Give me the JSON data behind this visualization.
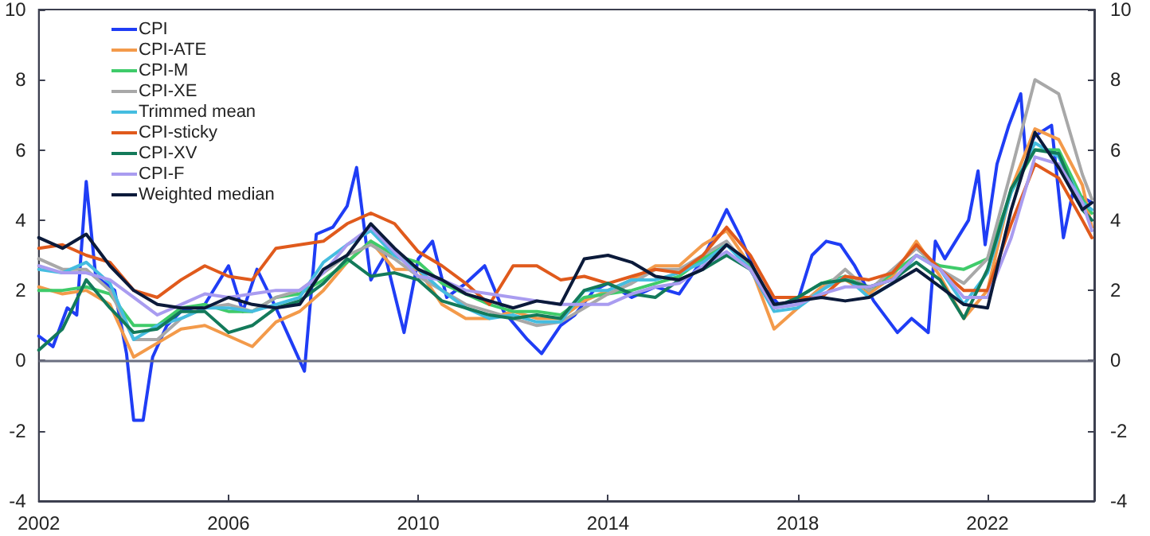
{
  "chart_data": {
    "type": "line",
    "legend": "top left",
    "grid": false,
    "marker": "none",
    "line_style": "solid",
    "xlim": [
      2002,
      2024.25
    ],
    "xticks": [
      2002,
      2006,
      2010,
      2014,
      2018,
      2022
    ],
    "ylim": [
      -4,
      10
    ],
    "yticks": [
      -4,
      -2,
      0,
      2,
      4,
      6,
      8,
      10
    ],
    "y2lim": [
      -4,
      10
    ],
    "y2ticks": [
      -4,
      -2,
      0,
      2,
      4,
      6,
      8,
      10
    ],
    "ref_lines": [
      {
        "axis": "y",
        "value": 0,
        "color": "#6b6f80"
      }
    ],
    "x": [
      2002,
      2002.5,
      2003,
      2003.5,
      2004,
      2004.5,
      2005,
      2005.5,
      2006,
      2006.5,
      2007,
      2007.5,
      2008,
      2008.5,
      2009,
      2009.5,
      2010,
      2010.5,
      2011,
      2011.5,
      2012,
      2012.5,
      2013,
      2013.5,
      2014,
      2014.5,
      2015,
      2015.5,
      2016,
      2016.5,
      2017,
      2017.5,
      2018,
      2018.5,
      2019,
      2019.5,
      2020,
      2020.5,
      2021,
      2021.5,
      2022,
      2022.5,
      2023,
      2023.5,
      2024,
      2024.2
    ],
    "series": [
      {
        "name": "CPI",
        "color": "#1f3df5",
        "x": [
          2002,
          2002.3,
          2002.6,
          2002.8,
          2003,
          2003.2,
          2003.6,
          2003.85,
          2004,
          2004.2,
          2004.4,
          2004.7,
          2005,
          2005.5,
          2006,
          2006.3,
          2006.6,
          2007,
          2007.3,
          2007.6,
          2007.85,
          2008.2,
          2008.5,
          2008.7,
          2009,
          2009.3,
          2009.7,
          2010,
          2010.3,
          2010.6,
          2011,
          2011.4,
          2011.8,
          2012.3,
          2012.6,
          2013,
          2013.3,
          2013.7,
          2014,
          2014.5,
          2015,
          2015.5,
          2016,
          2016.5,
          2016.8,
          2017.2,
          2017.6,
          2018,
          2018.3,
          2018.6,
          2018.9,
          2019.2,
          2019.6,
          2020.1,
          2020.4,
          2020.75,
          2020.9,
          2021.1,
          2021.6,
          2021.8,
          2021.95,
          2022.2,
          2022.45,
          2022.7,
          2022.8,
          2023,
          2023.35,
          2023.6,
          2023.8,
          2024.2
        ],
        "values": [
          0.7,
          0.4,
          1.5,
          1.3,
          5.1,
          2.4,
          2.0,
          0.2,
          -1.7,
          -1.7,
          0.1,
          1.0,
          1.4,
          1.6,
          2.7,
          1.4,
          2.6,
          1.5,
          0.6,
          -0.3,
          3.6,
          3.8,
          4.4,
          5.5,
          2.3,
          3.0,
          0.8,
          2.9,
          3.4,
          1.8,
          2.2,
          2.7,
          1.4,
          0.6,
          0.2,
          1.0,
          1.3,
          2.0,
          2.2,
          1.8,
          2.1,
          1.9,
          2.9,
          4.3,
          3.5,
          2.2,
          1.6,
          1.7,
          3.0,
          3.4,
          3.3,
          2.7,
          1.7,
          0.8,
          1.2,
          0.8,
          3.4,
          2.9,
          4.0,
          5.4,
          3.3,
          5.6,
          6.7,
          7.6,
          5.9,
          6.4,
          6.7,
          3.5,
          4.8,
          4.5
        ]
      },
      {
        "name": "CPI-ATE",
        "color": "#f39a4a",
        "values": [
          2.1,
          1.9,
          2.0,
          1.6,
          0.1,
          0.5,
          0.9,
          1.0,
          0.7,
          0.4,
          1.1,
          1.4,
          2.0,
          2.8,
          3.4,
          2.6,
          2.6,
          1.6,
          1.2,
          1.2,
          1.4,
          1.2,
          1.2,
          1.7,
          2.0,
          2.3,
          2.7,
          2.7,
          3.3,
          3.7,
          2.7,
          0.9,
          1.5,
          2.1,
          2.3,
          1.9,
          2.4,
          3.4,
          2.4,
          1.2,
          2.0,
          4.9,
          6.6,
          6.3,
          5.0,
          3.8
        ]
      },
      {
        "name": "CPI-M",
        "color": "#3fcb6a",
        "values": [
          2.0,
          2.0,
          2.1,
          1.9,
          1.0,
          1.0,
          1.5,
          1.6,
          1.4,
          1.4,
          1.8,
          1.9,
          2.3,
          2.8,
          3.4,
          3.0,
          2.8,
          2.2,
          1.9,
          1.6,
          1.4,
          1.4,
          1.3,
          1.8,
          1.9,
          2.0,
          2.2,
          2.4,
          2.9,
          3.3,
          2.7,
          1.5,
          1.8,
          2.2,
          2.4,
          2.0,
          2.5,
          3.0,
          2.7,
          2.6,
          2.9,
          4.8,
          6.0,
          6.0,
          4.6,
          4.2
        ]
      },
      {
        "name": "CPI-XE",
        "color": "#a8a8a8",
        "values": [
          2.9,
          2.6,
          2.6,
          2.0,
          0.6,
          0.6,
          1.2,
          1.5,
          1.6,
          1.4,
          1.8,
          2.0,
          2.5,
          3.0,
          3.3,
          2.9,
          2.4,
          2.0,
          1.6,
          1.4,
          1.2,
          1.0,
          1.1,
          1.5,
          1.9,
          2.2,
          2.6,
          2.6,
          3.0,
          3.4,
          2.6,
          1.5,
          1.6,
          2.0,
          2.6,
          2.0,
          2.6,
          3.2,
          2.6,
          2.2,
          2.9,
          5.4,
          8.0,
          7.6,
          5.3,
          4.6
        ]
      },
      {
        "name": "Trimmed mean",
        "color": "#45bde0",
        "values": [
          2.6,
          2.5,
          2.8,
          2.2,
          0.6,
          1.0,
          1.2,
          1.5,
          1.5,
          1.4,
          1.6,
          1.8,
          2.8,
          3.3,
          3.7,
          3.0,
          2.6,
          2.0,
          1.5,
          1.2,
          1.3,
          1.1,
          1.1,
          2.0,
          2.0,
          2.3,
          2.3,
          2.5,
          2.8,
          3.3,
          2.6,
          1.4,
          1.5,
          2.0,
          2.4,
          1.8,
          2.2,
          3.0,
          2.6,
          1.6,
          2.5,
          4.8,
          6.2,
          5.8,
          4.5,
          4.3
        ]
      },
      {
        "name": "CPI-sticky",
        "color": "#e05a1c",
        "values": [
          3.2,
          3.3,
          3.0,
          2.8,
          2.0,
          1.8,
          2.3,
          2.7,
          2.4,
          2.3,
          3.2,
          3.3,
          3.4,
          3.9,
          4.2,
          3.9,
          3.1,
          2.7,
          2.2,
          1.6,
          2.7,
          2.7,
          2.3,
          2.4,
          2.2,
          2.4,
          2.6,
          2.5,
          3.0,
          3.8,
          3.0,
          1.8,
          1.8,
          1.8,
          2.4,
          2.3,
          2.5,
          3.3,
          2.6,
          2.0,
          2.0,
          3.9,
          5.6,
          5.2,
          4.0,
          3.5
        ]
      },
      {
        "name": "CPI-XV",
        "color": "#137a5a",
        "values": [
          0.3,
          0.9,
          2.3,
          1.5,
          0.8,
          0.9,
          1.4,
          1.4,
          0.8,
          1.0,
          1.5,
          1.7,
          2.2,
          2.9,
          2.4,
          2.5,
          2.3,
          1.7,
          1.5,
          1.3,
          1.2,
          1.3,
          1.2,
          2.0,
          2.2,
          1.9,
          1.8,
          2.3,
          2.6,
          3.0,
          2.6,
          1.5,
          1.8,
          2.2,
          2.3,
          2.1,
          2.3,
          2.8,
          2.3,
          1.2,
          2.6,
          4.9,
          6.0,
          5.9,
          4.3,
          4.0
        ]
      },
      {
        "name": "CPI-F",
        "color": "#a99cf0",
        "values": [
          2.7,
          2.5,
          2.5,
          2.3,
          1.8,
          1.3,
          1.6,
          1.9,
          1.8,
          1.9,
          2.0,
          2.0,
          2.5,
          3.3,
          3.8,
          3.1,
          2.4,
          2.3,
          2.0,
          1.9,
          1.8,
          1.7,
          1.6,
          1.6,
          1.6,
          1.9,
          2.1,
          2.2,
          2.7,
          3.1,
          2.6,
          1.5,
          1.6,
          1.9,
          2.1,
          2.1,
          2.3,
          3.0,
          2.6,
          1.8,
          1.8,
          3.5,
          5.8,
          5.6,
          4.5,
          3.7
        ]
      },
      {
        "name": "Weighted median",
        "color": "#0b1a3a",
        "values": [
          3.5,
          3.2,
          3.6,
          2.7,
          2.0,
          1.6,
          1.5,
          1.5,
          1.8,
          1.6,
          1.5,
          1.6,
          2.6,
          3.0,
          3.9,
          3.2,
          2.6,
          2.3,
          1.9,
          1.7,
          1.5,
          1.7,
          1.6,
          2.9,
          3.0,
          2.8,
          2.4,
          2.3,
          2.6,
          3.3,
          2.8,
          1.6,
          1.7,
          1.8,
          1.7,
          1.8,
          2.2,
          2.6,
          2.1,
          1.6,
          1.5,
          4.3,
          6.5,
          5.5,
          4.3,
          4.5
        ]
      }
    ]
  }
}
